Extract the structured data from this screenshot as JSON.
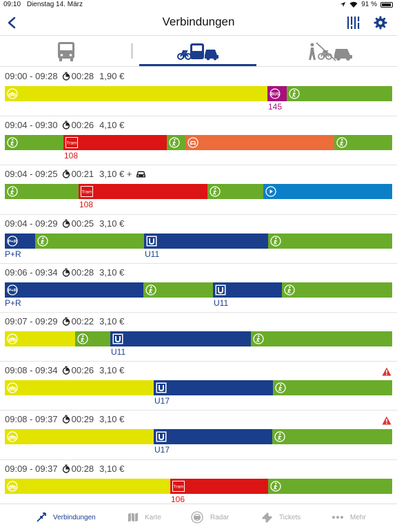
{
  "status": {
    "time": "09:10",
    "date": "Dienstag 14. März",
    "battery": "91 %"
  },
  "header": {
    "title": "Verbindungen"
  },
  "modes": [
    "bus-icon",
    "bike-bus-car-icon",
    "walk-bike-car-crossed-icon"
  ],
  "colors": {
    "yellow": "#e3e300",
    "green": "#6aac2a",
    "red": "#dc1414",
    "orange": "#ec6c3c",
    "blue": "#1a3e8c",
    "cyan": "#0b80c8",
    "magenta": "#a8107e",
    "accent": "#1a3e8c"
  },
  "connections": [
    {
      "times": "09:00 - 09:28",
      "duration": "00:28",
      "price": "1,90 €",
      "warning": false,
      "car": false,
      "segments": [
        {
          "type": "bike",
          "color": "yellow",
          "start": 0.0,
          "end": 0.678
        },
        {
          "type": "bus",
          "color": "magenta",
          "start": 0.678,
          "end": 0.728,
          "label": "145"
        },
        {
          "type": "walk",
          "color": "green",
          "start": 0.728,
          "end": 1.0
        }
      ]
    },
    {
      "times": "09:04 - 09:30",
      "duration": "00:26",
      "price": "4,10 €",
      "warning": false,
      "car": false,
      "segments": [
        {
          "type": "walk",
          "color": "green",
          "start": 0.0,
          "end": 0.151
        },
        {
          "type": "tram",
          "color": "red",
          "start": 0.151,
          "end": 0.418,
          "label": "108"
        },
        {
          "type": "walk",
          "color": "green",
          "start": 0.418,
          "end": 0.467
        },
        {
          "type": "taxi",
          "color": "orange",
          "start": 0.467,
          "end": 0.851
        },
        {
          "type": "walk",
          "color": "green",
          "start": 0.851,
          "end": 1.0
        }
      ]
    },
    {
      "times": "09:04 - 09:25",
      "duration": "00:21",
      "price": "3,10 € +",
      "warning": false,
      "car": true,
      "segments": [
        {
          "type": "walk",
          "color": "green",
          "start": 0.0,
          "end": 0.19
        },
        {
          "type": "tram",
          "color": "red",
          "start": 0.19,
          "end": 0.523,
          "label": "108"
        },
        {
          "type": "walk",
          "color": "green",
          "start": 0.523,
          "end": 0.667
        },
        {
          "type": "play",
          "color": "cyan",
          "start": 0.667,
          "end": 1.0
        }
      ]
    },
    {
      "times": "09:04 - 09:29",
      "duration": "00:25",
      "price": "3,10 €",
      "warning": false,
      "car": false,
      "segments": [
        {
          "type": "pr",
          "color": "blue",
          "start": 0.0,
          "end": 0.078,
          "label": "P+R"
        },
        {
          "type": "walk",
          "color": "green",
          "start": 0.078,
          "end": 0.359
        },
        {
          "type": "ubahn",
          "color": "blue",
          "start": 0.359,
          "end": 0.68,
          "label": "U11"
        },
        {
          "type": "walk",
          "color": "green",
          "start": 0.68,
          "end": 1.0
        }
      ]
    },
    {
      "times": "09:06 - 09:34",
      "duration": "00:28",
      "price": "3,10 €",
      "warning": false,
      "car": false,
      "segments": [
        {
          "type": "pr",
          "color": "blue",
          "start": 0.0,
          "end": 0.358,
          "label": "P+R"
        },
        {
          "type": "walk",
          "color": "green",
          "start": 0.358,
          "end": 0.537
        },
        {
          "type": "ubahn",
          "color": "blue",
          "start": 0.537,
          "end": 0.715,
          "label": "U11"
        },
        {
          "type": "walk",
          "color": "green",
          "start": 0.715,
          "end": 1.0
        }
      ]
    },
    {
      "times": "09:07 - 09:29",
      "duration": "00:22",
      "price": "3,10 €",
      "warning": false,
      "car": false,
      "segments": [
        {
          "type": "bike",
          "color": "yellow",
          "start": 0.0,
          "end": 0.181
        },
        {
          "type": "walk",
          "color": "green",
          "start": 0.181,
          "end": 0.272
        },
        {
          "type": "ubahn",
          "color": "blue",
          "start": 0.272,
          "end": 0.635,
          "label": "U11"
        },
        {
          "type": "walk",
          "color": "green",
          "start": 0.635,
          "end": 1.0
        }
      ]
    },
    {
      "times": "09:08 - 09:34",
      "duration": "00:26",
      "price": "3,10 €",
      "warning": true,
      "car": false,
      "segments": [
        {
          "type": "bike",
          "color": "yellow",
          "start": 0.0,
          "end": 0.384
        },
        {
          "type": "ubahn",
          "color": "blue",
          "start": 0.384,
          "end": 0.692,
          "label": "U17"
        },
        {
          "type": "walk",
          "color": "green",
          "start": 0.692,
          "end": 1.0
        }
      ]
    },
    {
      "times": "09:08 - 09:37",
      "duration": "00:29",
      "price": "3,10 €",
      "warning": true,
      "car": false,
      "segments": [
        {
          "type": "bike",
          "color": "yellow",
          "start": 0.0,
          "end": 0.384
        },
        {
          "type": "ubahn",
          "color": "blue",
          "start": 0.384,
          "end": 0.69,
          "label": "U17"
        },
        {
          "type": "walk",
          "color": "green",
          "start": 0.69,
          "end": 1.0
        }
      ]
    },
    {
      "times": "09:09 - 09:37",
      "duration": "00:28",
      "price": "3,10 €",
      "warning": false,
      "car": false,
      "segments": [
        {
          "type": "bike",
          "color": "yellow",
          "start": 0.0,
          "end": 0.427
        },
        {
          "type": "tram",
          "color": "red",
          "start": 0.427,
          "end": 0.68,
          "label": "106"
        },
        {
          "type": "walk",
          "color": "green",
          "start": 0.68,
          "end": 1.0
        }
      ]
    }
  ],
  "tabs": [
    {
      "label": "Verbindungen",
      "icon": "arrows-icon",
      "active": true
    },
    {
      "label": "Karte",
      "icon": "map-icon",
      "active": false
    },
    {
      "label": "Radar",
      "icon": "radar-icon",
      "active": false
    },
    {
      "label": "Tickets",
      "icon": "ticket-icon",
      "active": false
    },
    {
      "label": "Mehr",
      "icon": "more-icon",
      "active": false
    }
  ]
}
